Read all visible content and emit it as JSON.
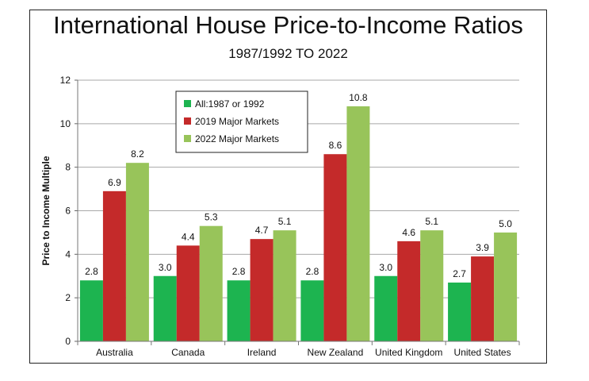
{
  "chart_data": {
    "type": "bar",
    "title": "International House Price-to-Income Ratios",
    "subtitle": "1987/1992 TO 2022",
    "xlabel": "",
    "ylabel": "Price to Income Multiple",
    "ylim": [
      0,
      12
    ],
    "yticks": [
      "0",
      "2",
      "4",
      "6",
      "8",
      "10",
      "12"
    ],
    "grid": true,
    "legend_position": "top-left",
    "categories": [
      "Australia",
      "Canada",
      "Ireland",
      "New Zealand",
      "United Kingdom",
      "United States"
    ],
    "series": [
      {
        "name": "All:1987 or 1992",
        "color": "#1db450",
        "values": [
          2.8,
          3.0,
          2.8,
          2.8,
          3.0,
          2.7
        ],
        "labels": [
          "2.8",
          "3.0",
          "2.8",
          "2.8",
          "3.0",
          "2.7"
        ]
      },
      {
        "name": "2019 Major Markets",
        "color": "#c42a2a",
        "values": [
          6.9,
          4.4,
          4.7,
          8.6,
          4.6,
          3.9
        ],
        "labels": [
          "6.9",
          "4.4",
          "4.7",
          "8.6",
          "4.6",
          "3.9"
        ]
      },
      {
        "name": "2022 Major Markets",
        "color": "#98c45a",
        "values": [
          8.2,
          5.3,
          5.1,
          10.8,
          5.1,
          5.0
        ],
        "labels": [
          "8.2",
          "5.3",
          "5.1",
          "10.8",
          "5.1",
          "5.0"
        ]
      }
    ]
  }
}
